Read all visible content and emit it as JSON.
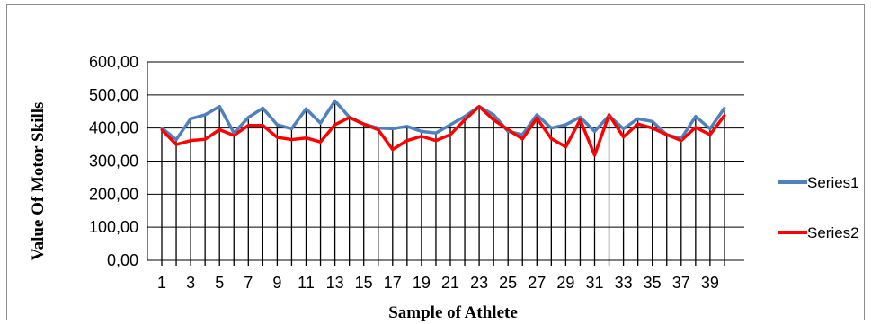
{
  "chart_data": {
    "type": "line",
    "title": "",
    "xlabel": "Sample of Athlete",
    "ylabel": "Value Of Motor Skills",
    "ylim": [
      0,
      600
    ],
    "yticks": [
      "0,00",
      "100,00",
      "200,00",
      "300,00",
      "400,00",
      "500,00",
      "600,00"
    ],
    "ytick_values": [
      0,
      100,
      200,
      300,
      400,
      500,
      600
    ],
    "x": [
      1,
      2,
      3,
      4,
      5,
      6,
      7,
      8,
      9,
      10,
      11,
      12,
      13,
      14,
      15,
      16,
      17,
      18,
      19,
      20,
      21,
      22,
      23,
      24,
      25,
      26,
      27,
      28,
      29,
      30,
      31,
      32,
      33,
      34,
      35,
      36,
      37,
      38,
      39,
      40
    ],
    "xtick_labels": [
      "1",
      "3",
      "5",
      "7",
      "9",
      "11",
      "13",
      "15",
      "17",
      "19",
      "21",
      "23",
      "25",
      "27",
      "29",
      "31",
      "33",
      "35",
      "37",
      "39"
    ],
    "xtick_values": [
      1,
      3,
      5,
      7,
      9,
      11,
      13,
      15,
      17,
      19,
      21,
      23,
      25,
      27,
      29,
      31,
      33,
      35,
      37,
      39
    ],
    "grid": "vertical drop lines at each sample",
    "legend_position": "right",
    "series": [
      {
        "name": "Series1",
        "color": "#4f81bd",
        "values": [
          400,
          365,
          428,
          440,
          465,
          385,
          432,
          460,
          410,
          398,
          458,
          415,
          482,
          433,
          412,
          400,
          398,
          405,
          390,
          385,
          410,
          435,
          465,
          440,
          390,
          380,
          440,
          400,
          410,
          433,
          390,
          437,
          398,
          428,
          420,
          380,
          368,
          435,
          398,
          460
        ]
      },
      {
        "name": "Series2",
        "color": "#ff0000",
        "values": [
          395,
          350,
          362,
          366,
          395,
          378,
          408,
          408,
          372,
          365,
          370,
          358,
          410,
          432,
          412,
          395,
          335,
          362,
          375,
          362,
          380,
          425,
          465,
          425,
          395,
          367,
          430,
          368,
          343,
          425,
          318,
          440,
          373,
          412,
          400,
          380,
          362,
          402,
          380,
          438
        ]
      }
    ]
  }
}
